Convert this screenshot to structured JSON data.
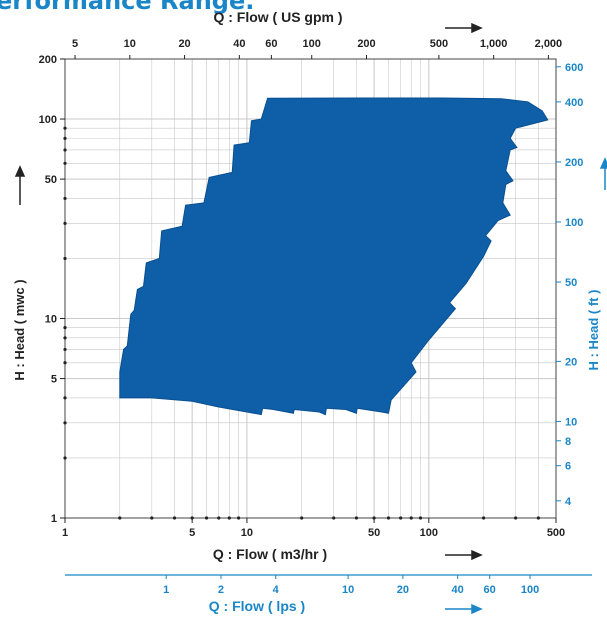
{
  "page": {
    "title": "erformance Range."
  },
  "colors": {
    "envelope": "#0f5fa8",
    "envelope_edge": "#0a4f90",
    "secondary_axis": "#1a86c8",
    "primary_axis": "#222222",
    "grid": "#c8c8c8"
  },
  "chart_data": {
    "type": "area",
    "title": "",
    "grid": true,
    "x_scale": "log",
    "y_scale": "log",
    "xlabel": "Q : Flow ( m3/hr )",
    "ylabel": "H : Head ( mwc )",
    "xlim": [
      1,
      500
    ],
    "ylim": [
      1,
      200
    ],
    "x_ticks": [
      {
        "v": 1,
        "label": "1"
      },
      {
        "v": 5,
        "label": "5"
      },
      {
        "v": 10,
        "label": "10"
      },
      {
        "v": 50,
        "label": "50"
      },
      {
        "v": 100,
        "label": "100"
      },
      {
        "v": 500,
        "label": "500"
      }
    ],
    "y_ticks": [
      {
        "v": 1,
        "label": "1"
      },
      {
        "v": 5,
        "label": "5"
      },
      {
        "v": 10,
        "label": "10"
      },
      {
        "v": 50,
        "label": "50"
      },
      {
        "v": 100,
        "label": "100"
      },
      {
        "v": 200,
        "label": "200"
      }
    ],
    "top_axis": {
      "label": "Q : Flow ( US gpm )",
      "ticks": [
        {
          "v": 5,
          "label": "5"
        },
        {
          "v": 10,
          "label": "10"
        },
        {
          "v": 20,
          "label": "20"
        },
        {
          "v": 40,
          "label": "40"
        },
        {
          "v": 60,
          "label": "60"
        },
        {
          "v": 100,
          "label": "100"
        },
        {
          "v": 200,
          "label": "200"
        },
        {
          "v": 500,
          "label": "500"
        },
        {
          "v": 1000,
          "label": "1,000"
        },
        {
          "v": 2000,
          "label": "2,000"
        }
      ]
    },
    "right_axis": {
      "label": "H : Head ( ft )",
      "ticks": [
        {
          "v": 4,
          "label": "4"
        },
        {
          "v": 6,
          "label": "6"
        },
        {
          "v": 8,
          "label": "8"
        },
        {
          "v": 10,
          "label": "10"
        },
        {
          "v": 20,
          "label": "20"
        },
        {
          "v": 50,
          "label": "50"
        },
        {
          "v": 100,
          "label": "100"
        },
        {
          "v": 200,
          "label": "200"
        },
        {
          "v": 400,
          "label": "400"
        },
        {
          "v": 600,
          "label": "600"
        }
      ]
    },
    "bottom_axis_2": {
      "label": "Q : Flow ( lps )",
      "ticks": [
        {
          "v": 1,
          "label": "1"
        },
        {
          "v": 2,
          "label": "2"
        },
        {
          "v": 4,
          "label": "4"
        },
        {
          "v": 10,
          "label": "10"
        },
        {
          "v": 20,
          "label": "20"
        },
        {
          "v": 40,
          "label": "40"
        },
        {
          "v": 60,
          "label": "60"
        },
        {
          "v": 100,
          "label": "100"
        }
      ]
    },
    "series": [
      {
        "name": "",
        "points": [
          [
            2.0,
            4.0
          ],
          [
            3.0,
            4.0
          ],
          [
            5.0,
            3.85
          ],
          [
            7.0,
            3.6
          ],
          [
            10.0,
            3.4
          ],
          [
            12.0,
            3.3
          ],
          [
            12.2,
            3.55
          ],
          [
            14.0,
            3.5
          ],
          [
            18.0,
            3.35
          ],
          [
            18.2,
            3.5
          ],
          [
            25.0,
            3.4
          ],
          [
            27.0,
            3.3
          ],
          [
            27.3,
            3.55
          ],
          [
            35.0,
            3.5
          ],
          [
            40.0,
            3.35
          ],
          [
            40.4,
            3.55
          ],
          [
            55.0,
            3.4
          ],
          [
            60.0,
            3.35
          ],
          [
            62.0,
            3.9
          ],
          [
            85.0,
            5.4
          ],
          [
            80.0,
            6.0
          ],
          [
            100.0,
            7.8
          ],
          [
            140.0,
            11.2
          ],
          [
            130.0,
            12.0
          ],
          [
            160.0,
            15.0
          ],
          [
            200.0,
            20.5
          ],
          [
            220.0,
            24.5
          ],
          [
            205.0,
            26.0
          ],
          [
            240.0,
            31.0
          ],
          [
            280.0,
            33.0
          ],
          [
            255.0,
            38.0
          ],
          [
            265.0,
            47.0
          ],
          [
            290.0,
            49.0
          ],
          [
            265.0,
            55.0
          ],
          [
            280.0,
            70.0
          ],
          [
            305.0,
            72.0
          ],
          [
            280.0,
            80.0
          ],
          [
            300.0,
            90.0
          ],
          [
            450.0,
            99.0
          ],
          [
            420.0,
            110.0
          ],
          [
            350.0,
            122.0
          ],
          [
            250.0,
            126.5
          ],
          [
            120.0,
            127.5
          ],
          [
            40.0,
            127.5
          ],
          [
            13.0,
            127.0
          ],
          [
            12.0,
            100.0
          ],
          [
            10.6,
            98.0
          ],
          [
            10.3,
            76.0
          ],
          [
            8.5,
            74.0
          ],
          [
            8.3,
            54.0
          ],
          [
            6.2,
            51.0
          ],
          [
            5.8,
            38.0
          ],
          [
            4.6,
            37.0
          ],
          [
            4.4,
            29.0
          ],
          [
            3.4,
            27.5
          ],
          [
            3.3,
            20.0
          ],
          [
            2.8,
            19.0
          ],
          [
            2.7,
            14.5
          ],
          [
            2.5,
            14.0
          ],
          [
            2.4,
            11.0
          ],
          [
            2.3,
            10.5
          ],
          [
            2.2,
            7.3
          ],
          [
            2.1,
            7.0
          ],
          [
            2.0,
            5.4
          ]
        ]
      }
    ]
  }
}
